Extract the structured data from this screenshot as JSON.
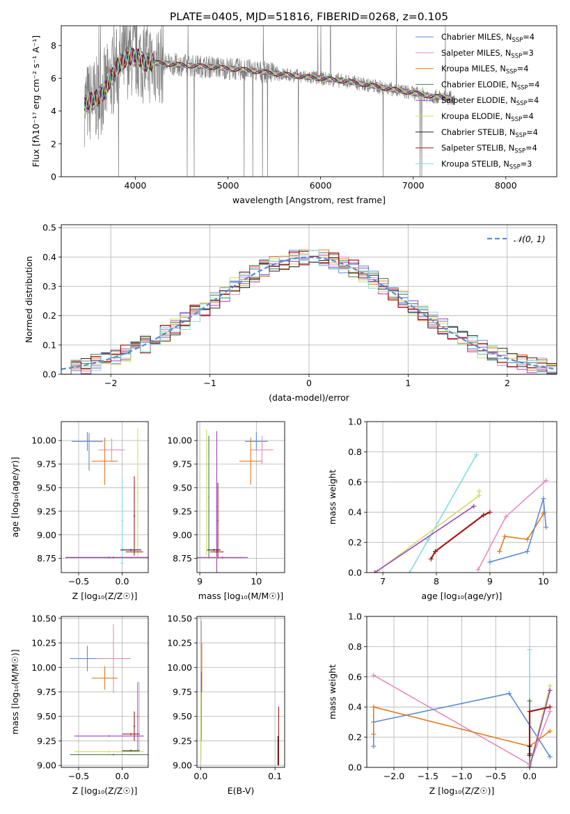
{
  "figure": {
    "title": "PLATE=0405, MJD=51816, FIBERID=0268, z=0.105"
  },
  "colors": {
    "c_miles": "#5b8bd6",
    "s_miles": "#e58bbd",
    "k_miles": "#e07b20",
    "c_elodie": "#4a7a4a",
    "s_elodie": "#a040c0",
    "k_elodie": "#c8e060",
    "c_stelib": "#202020",
    "s_stelib": "#a01818",
    "k_stelib": "#80dce0",
    "data": "#808080",
    "gauss": "#5b8bd6"
  },
  "chart_data": [
    {
      "id": "spectrum",
      "type": "line",
      "title": "PLATE=0405, MJD=51816, FIBERID=0268, z=0.105",
      "xlabel": "wavelength [Angstrom, rest frame]",
      "ylabel": "Flux [fλ10⁻¹⁷ erg cm⁻² s⁻¹ A⁻¹]",
      "xlim": [
        3200,
        8550
      ],
      "ylim": [
        0,
        9.2
      ],
      "xticks": [
        "4000",
        "5000",
        "6000",
        "7000",
        "8000"
      ],
      "yticks": [
        "0",
        "2",
        "4",
        "6",
        "8"
      ],
      "legend_position": "upper-right",
      "legend": [
        {
          "label": "Chabrier MILES, N",
          "sub": "SSP",
          "suffix": "=4",
          "color_key": "c_miles"
        },
        {
          "label": "Salpeter MILES, N",
          "sub": "SSP",
          "suffix": "=3",
          "color_key": "s_miles"
        },
        {
          "label": "Kroupa MILES, N",
          "sub": "SSP",
          "suffix": "=4",
          "color_key": "k_miles"
        },
        {
          "label": "Chabrier ELODIE, N",
          "sub": "SSP",
          "suffix": "=4",
          "color_key": "c_elodie"
        },
        {
          "label": "Salpeter ELODIE, N",
          "sub": "SSP",
          "suffix": "=4",
          "color_key": "s_elodie"
        },
        {
          "label": "Kroupa ELODIE, N",
          "sub": "SSP",
          "suffix": "=4",
          "color_key": "k_elodie"
        },
        {
          "label": "Chabrier STELIB, N",
          "sub": "SSP",
          "suffix": "=4",
          "color_key": "c_stelib"
        },
        {
          "label": "Salpeter STELIB, N",
          "sub": "SSP",
          "suffix": "=4",
          "color_key": "s_stelib"
        },
        {
          "label": "Kroupa STELIB, N",
          "sub": "SSP",
          "suffix": "=3",
          "color_key": "k_stelib"
        }
      ],
      "continuum": {
        "x": [
          3450,
          3600,
          3700,
          3800,
          3900,
          4000,
          4100,
          4300,
          4500,
          4800,
          5000,
          5200,
          5500,
          5800,
          6000,
          6300,
          6600,
          6800,
          7000,
          7200,
          7400
        ],
        "y": [
          4.4,
          4.8,
          5.6,
          6.6,
          7.3,
          7.3,
          7.0,
          6.9,
          6.8,
          6.7,
          6.6,
          6.5,
          6.3,
          6.1,
          6.0,
          5.8,
          5.5,
          5.3,
          5.1,
          4.9,
          4.8
        ]
      },
      "data_range": [
        3450,
        7450
      ]
    },
    {
      "id": "residuals",
      "type": "histogram",
      "xlabel": "(data-model)/error",
      "ylabel": "Normed distribution",
      "xlim": [
        -2.5,
        2.5
      ],
      "ylim": [
        0,
        0.51
      ],
      "xticks": [
        "−2",
        "−1",
        "0",
        "1",
        "2"
      ],
      "yticks": [
        "0.0",
        "0.1",
        "0.2",
        "0.3",
        "0.4",
        "0.5"
      ],
      "legend_label": "𝒩(0, 1)",
      "legend_position": "upper-right",
      "bin_width": 0.1,
      "bins_from": -2.5
    },
    {
      "id": "age_z",
      "type": "scatter-errorbar",
      "xlabel": "Z [log₁₀(Z/Z☉)]",
      "ylabel": "age  [log₁₀(age/yr)]",
      "xlim": [
        -0.7,
        0.3
      ],
      "ylim": [
        8.6,
        10.2
      ],
      "xticks": [
        "−0.5",
        "0.0"
      ],
      "yticks": [
        "8.75",
        "9.00",
        "9.25",
        "9.50",
        "9.75",
        "10.00"
      ],
      "points": [
        {
          "color_key": "c_miles",
          "x": -0.4,
          "y": 9.99,
          "xerr": 0.18,
          "yerr": 0.1
        },
        {
          "color_key": "c_miles",
          "x": -0.38,
          "y": 9.88,
          "xerr": 0.0,
          "yerr": 0.2
        },
        {
          "color_key": "s_miles",
          "x": -0.12,
          "y": 9.9,
          "xerr": 0.15,
          "yerr": 0.12
        },
        {
          "color_key": "k_miles",
          "x": -0.2,
          "y": 9.78,
          "xerr": 0.15,
          "yerr": 0.25
        },
        {
          "color_key": "k_elodie",
          "x": 0.18,
          "y": 9.45,
          "xerr": 0.01,
          "yerr": 0.68
        },
        {
          "color_key": "s_stelib",
          "x": 0.14,
          "y": 9.2,
          "xerr": 0.01,
          "yerr": 0.42
        },
        {
          "color_key": "k_stelib",
          "x": 0.0,
          "y": 9.15,
          "xerr": 0.01,
          "yerr": 0.45
        },
        {
          "color_key": "c_stelib",
          "x": 0.1,
          "y": 8.84,
          "xerr": 0.12,
          "yerr": 0.01
        },
        {
          "color_key": "s_stelib",
          "x": 0.14,
          "y": 8.82,
          "xerr": 0.1,
          "yerr": 0.01
        },
        {
          "color_key": "k_elodie",
          "x": -0.2,
          "y": 8.76,
          "xerr": 0.45,
          "yerr": 0.01
        },
        {
          "color_key": "c_elodie",
          "x": -0.1,
          "y": 8.76,
          "xerr": 0.55,
          "yerr": 0.01
        },
        {
          "color_key": "s_elodie",
          "x": -0.15,
          "y": 8.76,
          "xerr": 0.5,
          "yerr": 0.01
        },
        {
          "color_key": "k_stelib",
          "x": 0.0,
          "y": 8.7,
          "xerr": 0.02,
          "yerr": 0.0
        }
      ]
    },
    {
      "id": "age_mass",
      "type": "scatter-errorbar",
      "xlabel": "mass [log₁₀(M/M☉)]",
      "ylabel": "",
      "xlim": [
        8.95,
        10.5
      ],
      "ylim": [
        8.6,
        10.2
      ],
      "xticks": [
        "9",
        "10"
      ],
      "yticks": [
        "8.75",
        "9.00",
        "9.25",
        "9.50",
        "9.75",
        "10.00"
      ],
      "points": [
        {
          "color_key": "c_miles",
          "x": 10.0,
          "y": 9.99,
          "xerr": 0.2,
          "yerr": 0.1
        },
        {
          "color_key": "s_miles",
          "x": 10.1,
          "y": 9.9,
          "xerr": 0.2,
          "yerr": 0.15
        },
        {
          "color_key": "k_miles",
          "x": 9.9,
          "y": 9.78,
          "xerr": 0.2,
          "yerr": 0.25
        },
        {
          "color_key": "k_elodie",
          "x": 9.12,
          "y": 9.45,
          "xerr": 0.01,
          "yerr": 0.67
        },
        {
          "color_key": "c_elodie",
          "x": 9.16,
          "y": 9.4,
          "xerr": 0.01,
          "yerr": 0.65
        },
        {
          "color_key": "s_elodie",
          "x": 9.3,
          "y": 9.3,
          "xerr": 0.01,
          "yerr": 0.8
        },
        {
          "color_key": "s_stelib",
          "x": 9.32,
          "y": 9.15,
          "xerr": 0.01,
          "yerr": 0.4
        },
        {
          "color_key": "c_stelib",
          "x": 9.25,
          "y": 8.84,
          "xerr": 0.12,
          "yerr": 0.01
        },
        {
          "color_key": "s_stelib",
          "x": 9.3,
          "y": 8.82,
          "xerr": 0.12,
          "yerr": 0.01
        },
        {
          "color_key": "k_elodie",
          "x": 9.3,
          "y": 8.76,
          "xerr": 0.45,
          "yerr": 0.01
        },
        {
          "color_key": "s_elodie",
          "x": 9.4,
          "y": 8.76,
          "xerr": 0.45,
          "yerr": 0.01
        }
      ]
    },
    {
      "id": "weight_age",
      "type": "line",
      "xlabel": "age  [log₁₀(age/yr)]",
      "ylabel": "mass weight",
      "xlim": [
        6.7,
        10.25
      ],
      "ylim": [
        0,
        1.0
      ],
      "xticks": [
        "7",
        "8",
        "9",
        "10"
      ],
      "yticks": [
        "0.0",
        "0.2",
        "0.4",
        "0.6",
        "0.8",
        "1.0"
      ],
      "series": [
        {
          "color_key": "k_stelib",
          "x": [
            7.5,
            7.85,
            8.75
          ],
          "y": [
            0.0,
            0.22,
            0.78
          ]
        },
        {
          "color_key": "k_elodie",
          "x": [
            6.85,
            6.9,
            8.8,
            8.8
          ],
          "y": [
            0.0,
            0.01,
            0.51,
            0.54
          ]
        },
        {
          "color_key": "s_elodie",
          "x": [
            6.85,
            8.7
          ],
          "y": [
            0.0,
            0.44
          ]
        },
        {
          "color_key": "s_stelib",
          "x": [
            7.9,
            7.98,
            8.88,
            9.0
          ],
          "y": [
            0.09,
            0.14,
            0.38,
            0.4
          ]
        },
        {
          "color_key": "s_miles",
          "x": [
            8.78,
            9.3,
            10.05
          ],
          "y": [
            0.02,
            0.37,
            0.61
          ]
        },
        {
          "color_key": "k_miles",
          "x": [
            9.18,
            9.28,
            9.7,
            10.02,
            10.0
          ],
          "y": [
            0.14,
            0.24,
            0.22,
            0.4,
            0.39
          ]
        },
        {
          "color_key": "c_miles",
          "x": [
            9.0,
            9.7,
            10.0,
            10.05
          ],
          "y": [
            0.07,
            0.14,
            0.49,
            0.3
          ]
        }
      ]
    },
    {
      "id": "mass_z",
      "type": "scatter-errorbar",
      "xlabel": "Z [log₁₀(Z/Z☉)]",
      "ylabel": "mass [log₁₀(M/M☉)]",
      "xlim": [
        -0.7,
        0.3
      ],
      "ylim": [
        8.98,
        10.52
      ],
      "xticks": [
        "−0.5",
        "0.0"
      ],
      "yticks": [
        "9.00",
        "9.25",
        "9.50",
        "9.75",
        "10.00",
        "10.25",
        "10.50"
      ],
      "points": [
        {
          "color_key": "c_miles",
          "x": -0.4,
          "y": 10.09,
          "xerr": 0.2,
          "yerr": 0.13
        },
        {
          "color_key": "s_miles",
          "x": -0.1,
          "y": 10.09,
          "xerr": 0.2,
          "yerr": 0.35
        },
        {
          "color_key": "k_miles",
          "x": -0.2,
          "y": 9.89,
          "xerr": 0.15,
          "yerr": 0.12
        },
        {
          "color_key": "s_elodie",
          "x": 0.18,
          "y": 9.5,
          "xerr": 0.01,
          "yerr": 0.35
        },
        {
          "color_key": "k_elodie",
          "x": 0.2,
          "y": 9.5,
          "xerr": 0.01,
          "yerr": 0.35
        },
        {
          "color_key": "s_stelib",
          "x": 0.14,
          "y": 9.4,
          "xerr": 0.01,
          "yerr": 0.15
        },
        {
          "color_key": "s_elodie",
          "x": -0.15,
          "y": 9.3,
          "xerr": 0.4,
          "yerr": 0.01
        },
        {
          "color_key": "s_stelib",
          "x": 0.1,
          "y": 9.32,
          "xerr": 0.1,
          "yerr": 0.01
        },
        {
          "color_key": "c_stelib",
          "x": 0.1,
          "y": 9.15,
          "xerr": 0.1,
          "yerr": 0.01
        },
        {
          "color_key": "k_elodie",
          "x": -0.15,
          "y": 9.14,
          "xerr": 0.4,
          "yerr": 0.01
        },
        {
          "color_key": "c_elodie",
          "x": -0.1,
          "y": 9.11,
          "xerr": 0.5,
          "yerr": 0.01
        }
      ]
    },
    {
      "id": "mass_ebv",
      "type": "scatter-errorbar",
      "xlabel": "E(B-V)",
      "ylabel": "",
      "xlim": [
        -0.005,
        0.113
      ],
      "ylim": [
        8.98,
        10.52
      ],
      "xticks": [
        "0.0",
        "0.1"
      ],
      "yticks": [
        "9.00",
        "9.25",
        "9.50",
        "9.75",
        "10.00",
        "10.25",
        "10.50"
      ],
      "points": [
        {
          "color_key": "s_miles",
          "x": 0.001,
          "y": 10.2,
          "xerr": 0.0,
          "yerr": 0.28
        },
        {
          "color_key": "k_miles",
          "x": 0.0015,
          "y": 10.0,
          "xerr": 0.0,
          "yerr": 0.25
        },
        {
          "color_key": "s_elodie",
          "x": 0.001,
          "y": 9.6,
          "xerr": 0.0,
          "yerr": 0.35
        },
        {
          "color_key": "k_elodie",
          "x": 0.0005,
          "y": 9.4,
          "xerr": 0.0,
          "yerr": 0.35
        },
        {
          "color_key": "s_stelib",
          "x": 0.105,
          "y": 9.3,
          "xerr": 0.0,
          "yerr": 0.3
        },
        {
          "color_key": "c_stelib",
          "x": 0.104,
          "y": 9.15,
          "xerr": 0.0,
          "yerr": 0.15
        }
      ]
    },
    {
      "id": "weight_z",
      "type": "line",
      "xlabel": "Z [log₁₀(Z/Z☉)]",
      "ylabel": "mass weight",
      "xlim": [
        -2.4,
        0.4
      ],
      "ylim": [
        0,
        1.0
      ],
      "xticks": [
        "−2.0",
        "−1.5",
        "−1.0",
        "−0.5",
        "0.0"
      ],
      "yticks": [
        "0.0",
        "0.2",
        "0.4",
        "0.6",
        "0.8",
        "1.0"
      ],
      "series": [
        {
          "color_key": "s_miles",
          "x": [
            -2.3,
            0.0,
            0.3
          ],
          "y": [
            0.61,
            0.02,
            0.37
          ]
        },
        {
          "color_key": "c_miles",
          "x": [
            -2.3,
            -2.3,
            -0.3,
            0.3
          ],
          "y": [
            0.14,
            0.3,
            0.49,
            0.07
          ]
        },
        {
          "color_key": "k_miles",
          "x": [
            -2.3,
            -2.3,
            0.0,
            0.0,
            0.3
          ],
          "y": [
            0.22,
            0.4,
            0.14,
            0.14,
            0.24
          ]
        },
        {
          "color_key": "k_stelib",
          "x": [
            0.0,
            0.0
          ],
          "y": [
            0.0,
            0.78
          ]
        },
        {
          "color_key": "c_elodie",
          "x": [
            0.0,
            0.0
          ],
          "y": [
            0.0,
            0.44
          ]
        },
        {
          "color_key": "k_elodie",
          "x": [
            0.0,
            0.0,
            0.3
          ],
          "y": [
            0.0,
            0.01,
            0.54
          ]
        },
        {
          "color_key": "s_elodie",
          "x": [
            0.0,
            0.3
          ],
          "y": [
            0.0,
            0.51
          ]
        },
        {
          "color_key": "s_stelib",
          "x": [
            0.0,
            0.0,
            0.3
          ],
          "y": [
            0.09,
            0.37,
            0.4
          ]
        },
        {
          "color_key": "c_stelib",
          "x": [
            0.0,
            0.0
          ],
          "y": [
            0.08,
            0.14
          ]
        }
      ]
    }
  ]
}
